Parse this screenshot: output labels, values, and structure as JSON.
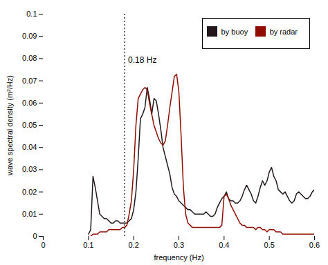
{
  "chart_data": {
    "type": "line",
    "xlabel": "frequency (Hz)",
    "ylabel": "wave spectral density (m²/Hz)",
    "x": [
      0.1,
      0.105,
      0.11,
      0.115,
      0.12,
      0.125,
      0.13,
      0.135,
      0.14,
      0.145,
      0.15,
      0.155,
      0.16,
      0.165,
      0.17,
      0.175,
      0.18,
      0.185,
      0.19,
      0.195,
      0.2,
      0.205,
      0.21,
      0.215,
      0.22,
      0.225,
      0.23,
      0.235,
      0.24,
      0.245,
      0.25,
      0.255,
      0.26,
      0.265,
      0.27,
      0.275,
      0.28,
      0.285,
      0.29,
      0.295,
      0.3,
      0.305,
      0.31,
      0.315,
      0.32,
      0.325,
      0.33,
      0.335,
      0.34,
      0.345,
      0.35,
      0.355,
      0.36,
      0.365,
      0.37,
      0.375,
      0.38,
      0.385,
      0.39,
      0.395,
      0.4,
      0.405,
      0.41,
      0.415,
      0.42,
      0.425,
      0.43,
      0.435,
      0.44,
      0.445,
      0.45,
      0.455,
      0.46,
      0.465,
      0.47,
      0.475,
      0.48,
      0.485,
      0.49,
      0.495,
      0.5,
      0.505,
      0.51,
      0.515,
      0.52,
      0.525,
      0.53,
      0.535,
      0.54,
      0.545,
      0.55,
      0.555,
      0.56,
      0.565,
      0.57,
      0.575,
      0.58,
      0.585,
      0.59,
      0.595,
      0.6
    ],
    "series": [
      {
        "name": "by buoy",
        "values": [
          0.001,
          0.003,
          0.027,
          0.022,
          0.016,
          0.01,
          0.009,
          0.008,
          0.008,
          0.007,
          0.006,
          0.006,
          0.007,
          0.007,
          0.006,
          0.006,
          0.006,
          0.006,
          0.007,
          0.008,
          0.012,
          0.02,
          0.035,
          0.053,
          0.055,
          0.058,
          0.067,
          0.062,
          0.055,
          0.062,
          0.061,
          0.055,
          0.048,
          0.04,
          0.036,
          0.032,
          0.028,
          0.022,
          0.019,
          0.018,
          0.016,
          0.015,
          0.014,
          0.013,
          0.012,
          0.012,
          0.011,
          0.01,
          0.01,
          0.01,
          0.01,
          0.01,
          0.011,
          0.01,
          0.009,
          0.009,
          0.01,
          0.013,
          0.015,
          0.017,
          0.018,
          0.02,
          0.017,
          0.016,
          0.016,
          0.015,
          0.015,
          0.016,
          0.018,
          0.021,
          0.023,
          0.021,
          0.019,
          0.016,
          0.015,
          0.018,
          0.022,
          0.025,
          0.023,
          0.025,
          0.029,
          0.031,
          0.027,
          0.025,
          0.021,
          0.02,
          0.019,
          0.02,
          0.018,
          0.016,
          0.015,
          0.016,
          0.019,
          0.02,
          0.019,
          0.018,
          0.017,
          0.017,
          0.018,
          0.02,
          0.021
        ]
      },
      {
        "name": "by radar",
        "values": [
          0.0,
          0.0,
          0.001,
          0.001,
          0.001,
          0.002,
          0.002,
          0.002,
          0.002,
          0.003,
          0.003,
          0.003,
          0.003,
          0.003,
          0.003,
          0.004,
          0.004,
          0.005,
          0.01,
          0.016,
          0.03,
          0.05,
          0.062,
          0.064,
          0.066,
          0.067,
          0.066,
          0.06,
          0.055,
          0.05,
          0.047,
          0.044,
          0.042,
          0.041,
          0.043,
          0.05,
          0.058,
          0.065,
          0.072,
          0.073,
          0.065,
          0.045,
          0.022,
          0.01,
          0.006,
          0.005,
          0.004,
          0.004,
          0.004,
          0.004,
          0.004,
          0.004,
          0.004,
          0.004,
          0.004,
          0.004,
          0.004,
          0.004,
          0.004,
          0.005,
          0.018,
          0.019,
          0.017,
          0.014,
          0.012,
          0.01,
          0.008,
          0.006,
          0.005,
          0.005,
          0.004,
          0.004,
          0.004,
          0.004,
          0.003,
          0.004,
          0.004,
          0.003,
          0.003,
          0.002,
          0.003,
          0.003,
          0.003,
          0.002,
          0.002,
          0.002,
          0.001,
          0.001,
          0.001,
          0.001,
          0.001,
          0.001,
          0.001,
          0.001,
          0.001,
          0.001,
          0.001,
          0.001,
          0.001,
          0.001,
          0.001
        ]
      }
    ],
    "xlim": [
      0,
      0.6
    ],
    "ylim": [
      0,
      0.1
    ],
    "xticks": [
      0,
      0.1,
      0.2,
      0.3,
      0.4,
      0.5,
      0.6
    ],
    "yticks": [
      0,
      0.01,
      0.02,
      0.03,
      0.04,
      0.05,
      0.06,
      0.07,
      0.08,
      0.09,
      0.1
    ],
    "grid": false,
    "legend": "upper right",
    "vline": {
      "x": 0.18,
      "label": "0.18 Hz",
      "line_style": "dotted"
    }
  }
}
